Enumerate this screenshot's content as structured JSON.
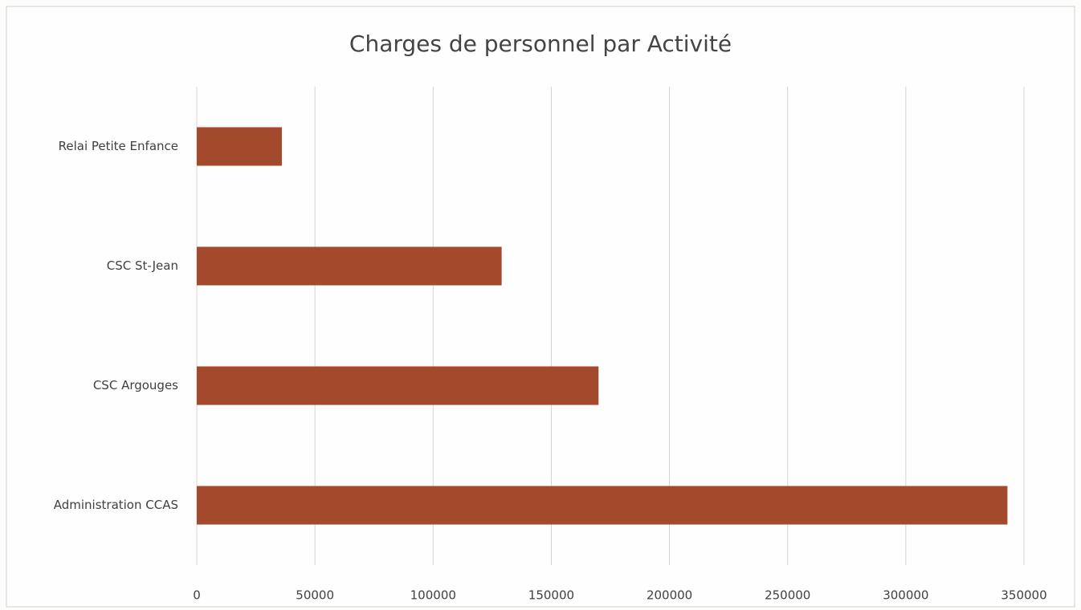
{
  "chart_data": {
    "type": "hbar",
    "title": "Charges de personnel par Activité",
    "categories": [
      "Relai Petite Enfance",
      "CSC St-Jean",
      "CSC Argouges",
      "Administration CCAS"
    ],
    "values": [
      36000,
      129000,
      170000,
      343000
    ],
    "color": "#a44a2c",
    "xlim": [
      0,
      350000
    ],
    "xticks": [
      0,
      50000,
      100000,
      150000,
      200000,
      250000,
      300000,
      350000
    ],
    "grid": true
  }
}
